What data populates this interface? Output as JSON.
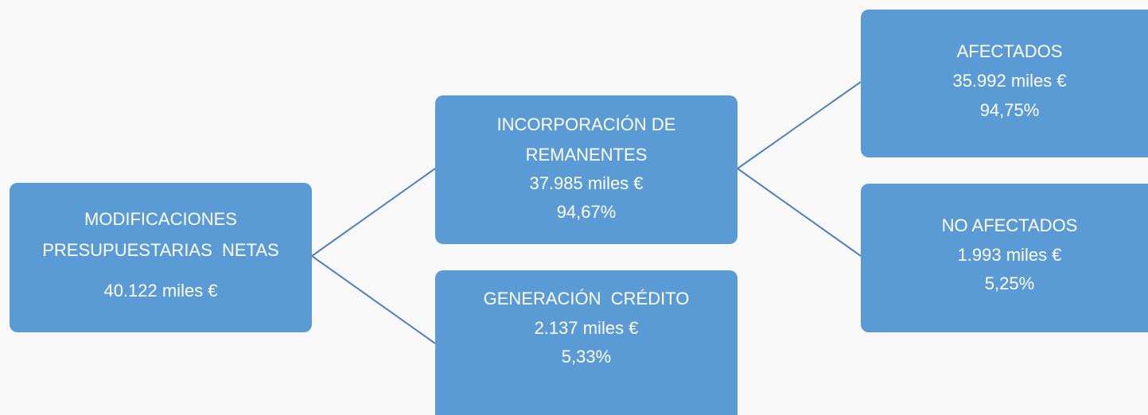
{
  "nodes": [
    {
      "lines": [
        "MODIFICACIONES",
        "PRESUPUESTARIAS  NETAS",
        "40.122 miles €"
      ]
    },
    {
      "lines": [
        "INCORPORACIÓN DE",
        "REMANENTES",
        "37.985 miles €",
        "94,67%"
      ]
    },
    {
      "lines": [
        "GENERACIÓN  CRÉDITO",
        "2.137 miles €",
        "5,33%"
      ]
    },
    {
      "lines": [
        "AFECTADOS",
        "35.992 miles €",
        "94,75%"
      ]
    },
    {
      "lines": [
        "NO AFECTADOS",
        "1.993 miles €",
        "5,25%"
      ]
    }
  ]
}
